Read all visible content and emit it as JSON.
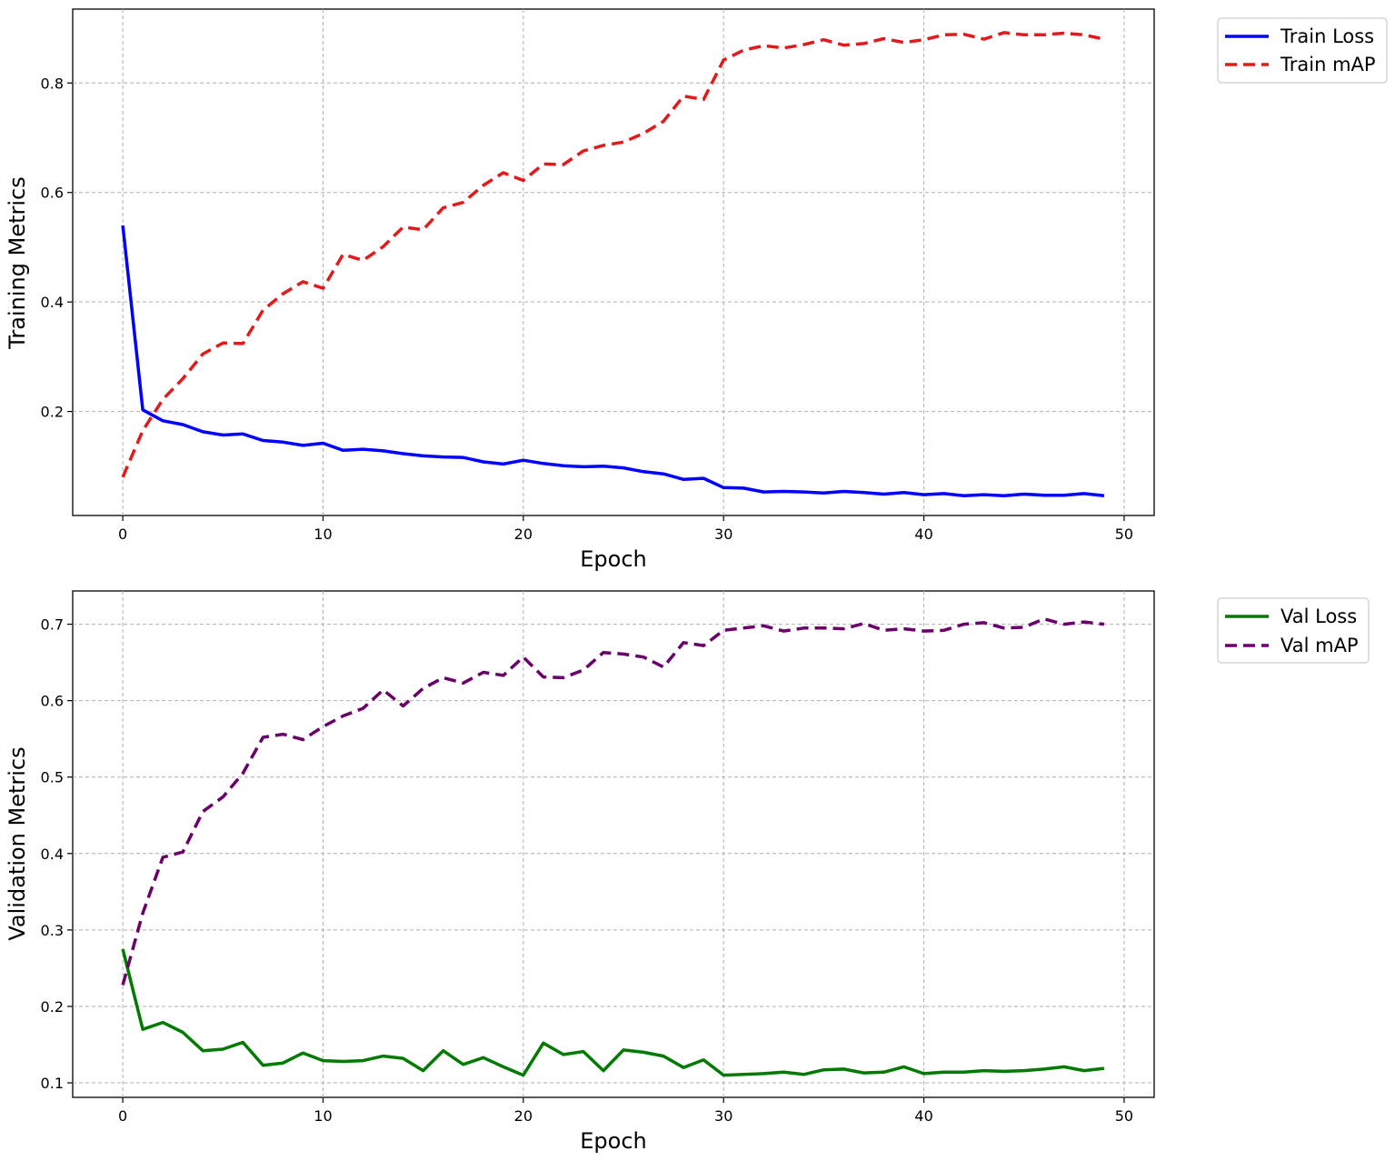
{
  "chart_data": [
    {
      "type": "line",
      "xlabel": "Epoch",
      "ylabel": "Training Metrics",
      "xlim": [
        -2.5,
        51.5
      ],
      "ylim": [
        0.01,
        0.935
      ],
      "xticks": [
        0,
        10,
        20,
        30,
        40,
        50
      ],
      "yticks": [
        0.2,
        0.4,
        0.6,
        0.8
      ],
      "ytick_decimals": 1,
      "grid": true,
      "legend_position": "upper-right-outside",
      "x": [
        0,
        1,
        2,
        3,
        4,
        5,
        6,
        7,
        8,
        9,
        10,
        11,
        12,
        13,
        14,
        15,
        16,
        17,
        18,
        19,
        20,
        21,
        22,
        23,
        24,
        25,
        26,
        27,
        28,
        29,
        30,
        31,
        32,
        33,
        34,
        35,
        36,
        37,
        38,
        39,
        40,
        41,
        42,
        43,
        44,
        45,
        46,
        47,
        48,
        49
      ],
      "series": [
        {
          "name": "Train Loss",
          "color": "#0000ff",
          "style": "solid",
          "values": [
            0.54,
            0.203,
            0.183,
            0.176,
            0.163,
            0.157,
            0.159,
            0.147,
            0.144,
            0.138,
            0.142,
            0.129,
            0.131,
            0.128,
            0.123,
            0.119,
            0.117,
            0.116,
            0.108,
            0.104,
            0.111,
            0.105,
            0.101,
            0.099,
            0.1,
            0.097,
            0.09,
            0.086,
            0.076,
            0.078,
            0.061,
            0.06,
            0.053,
            0.054,
            0.053,
            0.051,
            0.054,
            0.052,
            0.049,
            0.052,
            0.048,
            0.05,
            0.046,
            0.048,
            0.046,
            0.049,
            0.047,
            0.047,
            0.05,
            0.046
          ]
        },
        {
          "name": "Train mAP",
          "color": "#e31a1c",
          "style": "dashed",
          "values": [
            0.08,
            0.165,
            0.222,
            0.26,
            0.305,
            0.325,
            0.324,
            0.385,
            0.415,
            0.437,
            0.425,
            0.487,
            0.476,
            0.501,
            0.537,
            0.532,
            0.572,
            0.582,
            0.613,
            0.636,
            0.622,
            0.652,
            0.651,
            0.676,
            0.686,
            0.692,
            0.708,
            0.73,
            0.776,
            0.77,
            0.842,
            0.86,
            0.868,
            0.864,
            0.87,
            0.879,
            0.869,
            0.872,
            0.881,
            0.874,
            0.879,
            0.888,
            0.889,
            0.88,
            0.892,
            0.888,
            0.888,
            0.891,
            0.888,
            0.88
          ]
        }
      ]
    },
    {
      "type": "line",
      "xlabel": "Epoch",
      "ylabel": "Validation Metrics",
      "xlim": [
        -2.5,
        51.5
      ],
      "ylim": [
        0.081,
        0.7435
      ],
      "xticks": [
        0,
        10,
        20,
        30,
        40,
        50
      ],
      "yticks": [
        0.1,
        0.2,
        0.3,
        0.4,
        0.5,
        0.6,
        0.7
      ],
      "ytick_decimals": 1,
      "grid": true,
      "legend_position": "upper-right-outside",
      "x": [
        0,
        1,
        2,
        3,
        4,
        5,
        6,
        7,
        8,
        9,
        10,
        11,
        12,
        13,
        14,
        15,
        16,
        17,
        18,
        19,
        20,
        21,
        22,
        23,
        24,
        25,
        26,
        27,
        28,
        29,
        30,
        31,
        32,
        33,
        34,
        35,
        36,
        37,
        38,
        39,
        40,
        41,
        42,
        43,
        44,
        45,
        46,
        47,
        48,
        49
      ],
      "series": [
        {
          "name": "Val Loss",
          "color": "#007a00",
          "style": "solid",
          "values": [
            0.275,
            0.17,
            0.179,
            0.166,
            0.142,
            0.144,
            0.153,
            0.123,
            0.126,
            0.139,
            0.129,
            0.128,
            0.129,
            0.135,
            0.132,
            0.116,
            0.142,
            0.124,
            0.133,
            0.121,
            0.11,
            0.152,
            0.137,
            0.141,
            0.116,
            0.143,
            0.14,
            0.135,
            0.12,
            0.13,
            0.11,
            0.111,
            0.112,
            0.114,
            0.111,
            0.117,
            0.118,
            0.113,
            0.114,
            0.121,
            0.112,
            0.114,
            0.114,
            0.116,
            0.115,
            0.116,
            0.118,
            0.121,
            0.116,
            0.119
          ]
        },
        {
          "name": "Val mAP",
          "color": "#6a006a",
          "style": "dashed",
          "values": [
            0.228,
            0.322,
            0.395,
            0.402,
            0.455,
            0.474,
            0.505,
            0.552,
            0.556,
            0.549,
            0.566,
            0.58,
            0.59,
            0.614,
            0.593,
            0.616,
            0.63,
            0.623,
            0.637,
            0.633,
            0.657,
            0.631,
            0.63,
            0.64,
            0.663,
            0.661,
            0.657,
            0.644,
            0.676,
            0.672,
            0.692,
            0.695,
            0.698,
            0.691,
            0.695,
            0.695,
            0.694,
            0.701,
            0.692,
            0.694,
            0.691,
            0.692,
            0.7,
            0.702,
            0.695,
            0.696,
            0.707,
            0.7,
            0.703,
            0.7
          ]
        }
      ]
    }
  ]
}
